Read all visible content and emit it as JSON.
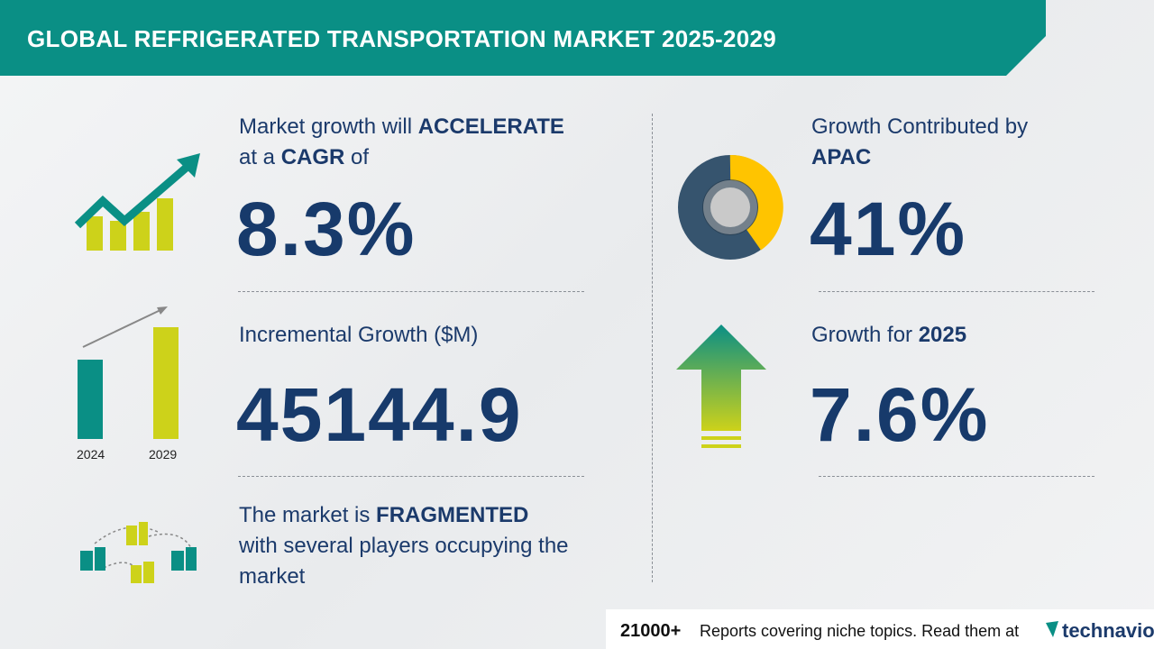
{
  "header": {
    "title": "GLOBAL REFRIGERATED TRANSPORTATION MARKET 2025-2029"
  },
  "cagr": {
    "text_1": "Market growth will",
    "emphasis_1": "ACCELERATE",
    "text_2": "at a",
    "emphasis_2": "CAGR",
    "text_3": "of",
    "value": "8.3%"
  },
  "incremental": {
    "label": "Incremental Growth ($M)",
    "value": "45144.9",
    "years": [
      "2024",
      "2029"
    ]
  },
  "fragmented": {
    "text_1": "The market is",
    "emphasis": "FRAGMENTED",
    "text_2": "with several players occupying the market"
  },
  "region": {
    "label": "Growth Contributed by",
    "emphasis": "APAC",
    "value": "41%"
  },
  "yoy": {
    "label": "Growth for",
    "emphasis": "2025",
    "value": "7.6%"
  },
  "footer": {
    "count": "21000+",
    "text": "Reports covering niche topics. Read them at",
    "brand": "technavio"
  }
}
